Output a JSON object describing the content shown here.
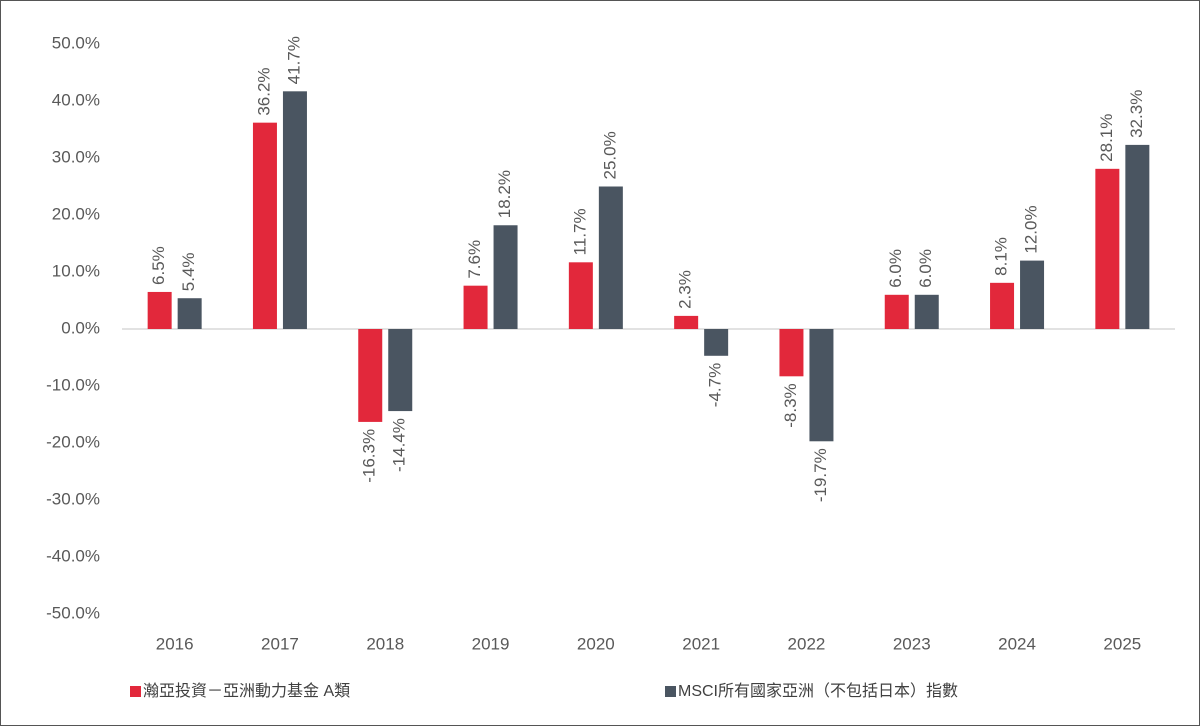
{
  "chart_data": {
    "type": "bar",
    "categories": [
      "2016",
      "2017",
      "2018",
      "2019",
      "2020",
      "2021",
      "2022",
      "2023",
      "2024",
      "2025"
    ],
    "series": [
      {
        "name": "瀚亞投資－亞洲動力基金 A類",
        "color": "#e2283b",
        "values": [
          6.5,
          36.2,
          -16.3,
          7.6,
          11.7,
          2.3,
          -8.3,
          6.0,
          8.1,
          28.1
        ],
        "value_labels": [
          "6.5%",
          "36.2%",
          "-16.3%",
          "7.6%",
          "11.7%",
          "2.3%",
          "-8.3%",
          "6.0%",
          "8.1%",
          "28.1%"
        ]
      },
      {
        "name": "MSCI所有國家亞洲（不包括日本）指數",
        "color": "#4a5561",
        "values": [
          5.4,
          41.7,
          -14.4,
          18.2,
          25.0,
          -4.7,
          -19.7,
          6.0,
          12.0,
          32.3
        ],
        "value_labels": [
          "5.4%",
          "41.7%",
          "-14.4%",
          "18.2%",
          "25.0%",
          "-4.7%",
          "-19.7%",
          "6.0%",
          "12.0%",
          "32.3%"
        ]
      }
    ],
    "ylim": [
      -50,
      50
    ],
    "yticks": [
      {
        "value": -50,
        "label": "-50.0%"
      },
      {
        "value": -40,
        "label": "-40.0%"
      },
      {
        "value": -30,
        "label": "-30.0%"
      },
      {
        "value": -20,
        "label": "-20.0%"
      },
      {
        "value": -10,
        "label": "-10.0%"
      },
      {
        "value": 0,
        "label": "0.0%"
      },
      {
        "value": 10,
        "label": "10.0%"
      },
      {
        "value": 20,
        "label": "20.0%"
      },
      {
        "value": 30,
        "label": "30.0%"
      },
      {
        "value": 40,
        "label": "40.0%"
      },
      {
        "value": 50,
        "label": "50.0%"
      }
    ],
    "legend": "bottom"
  }
}
